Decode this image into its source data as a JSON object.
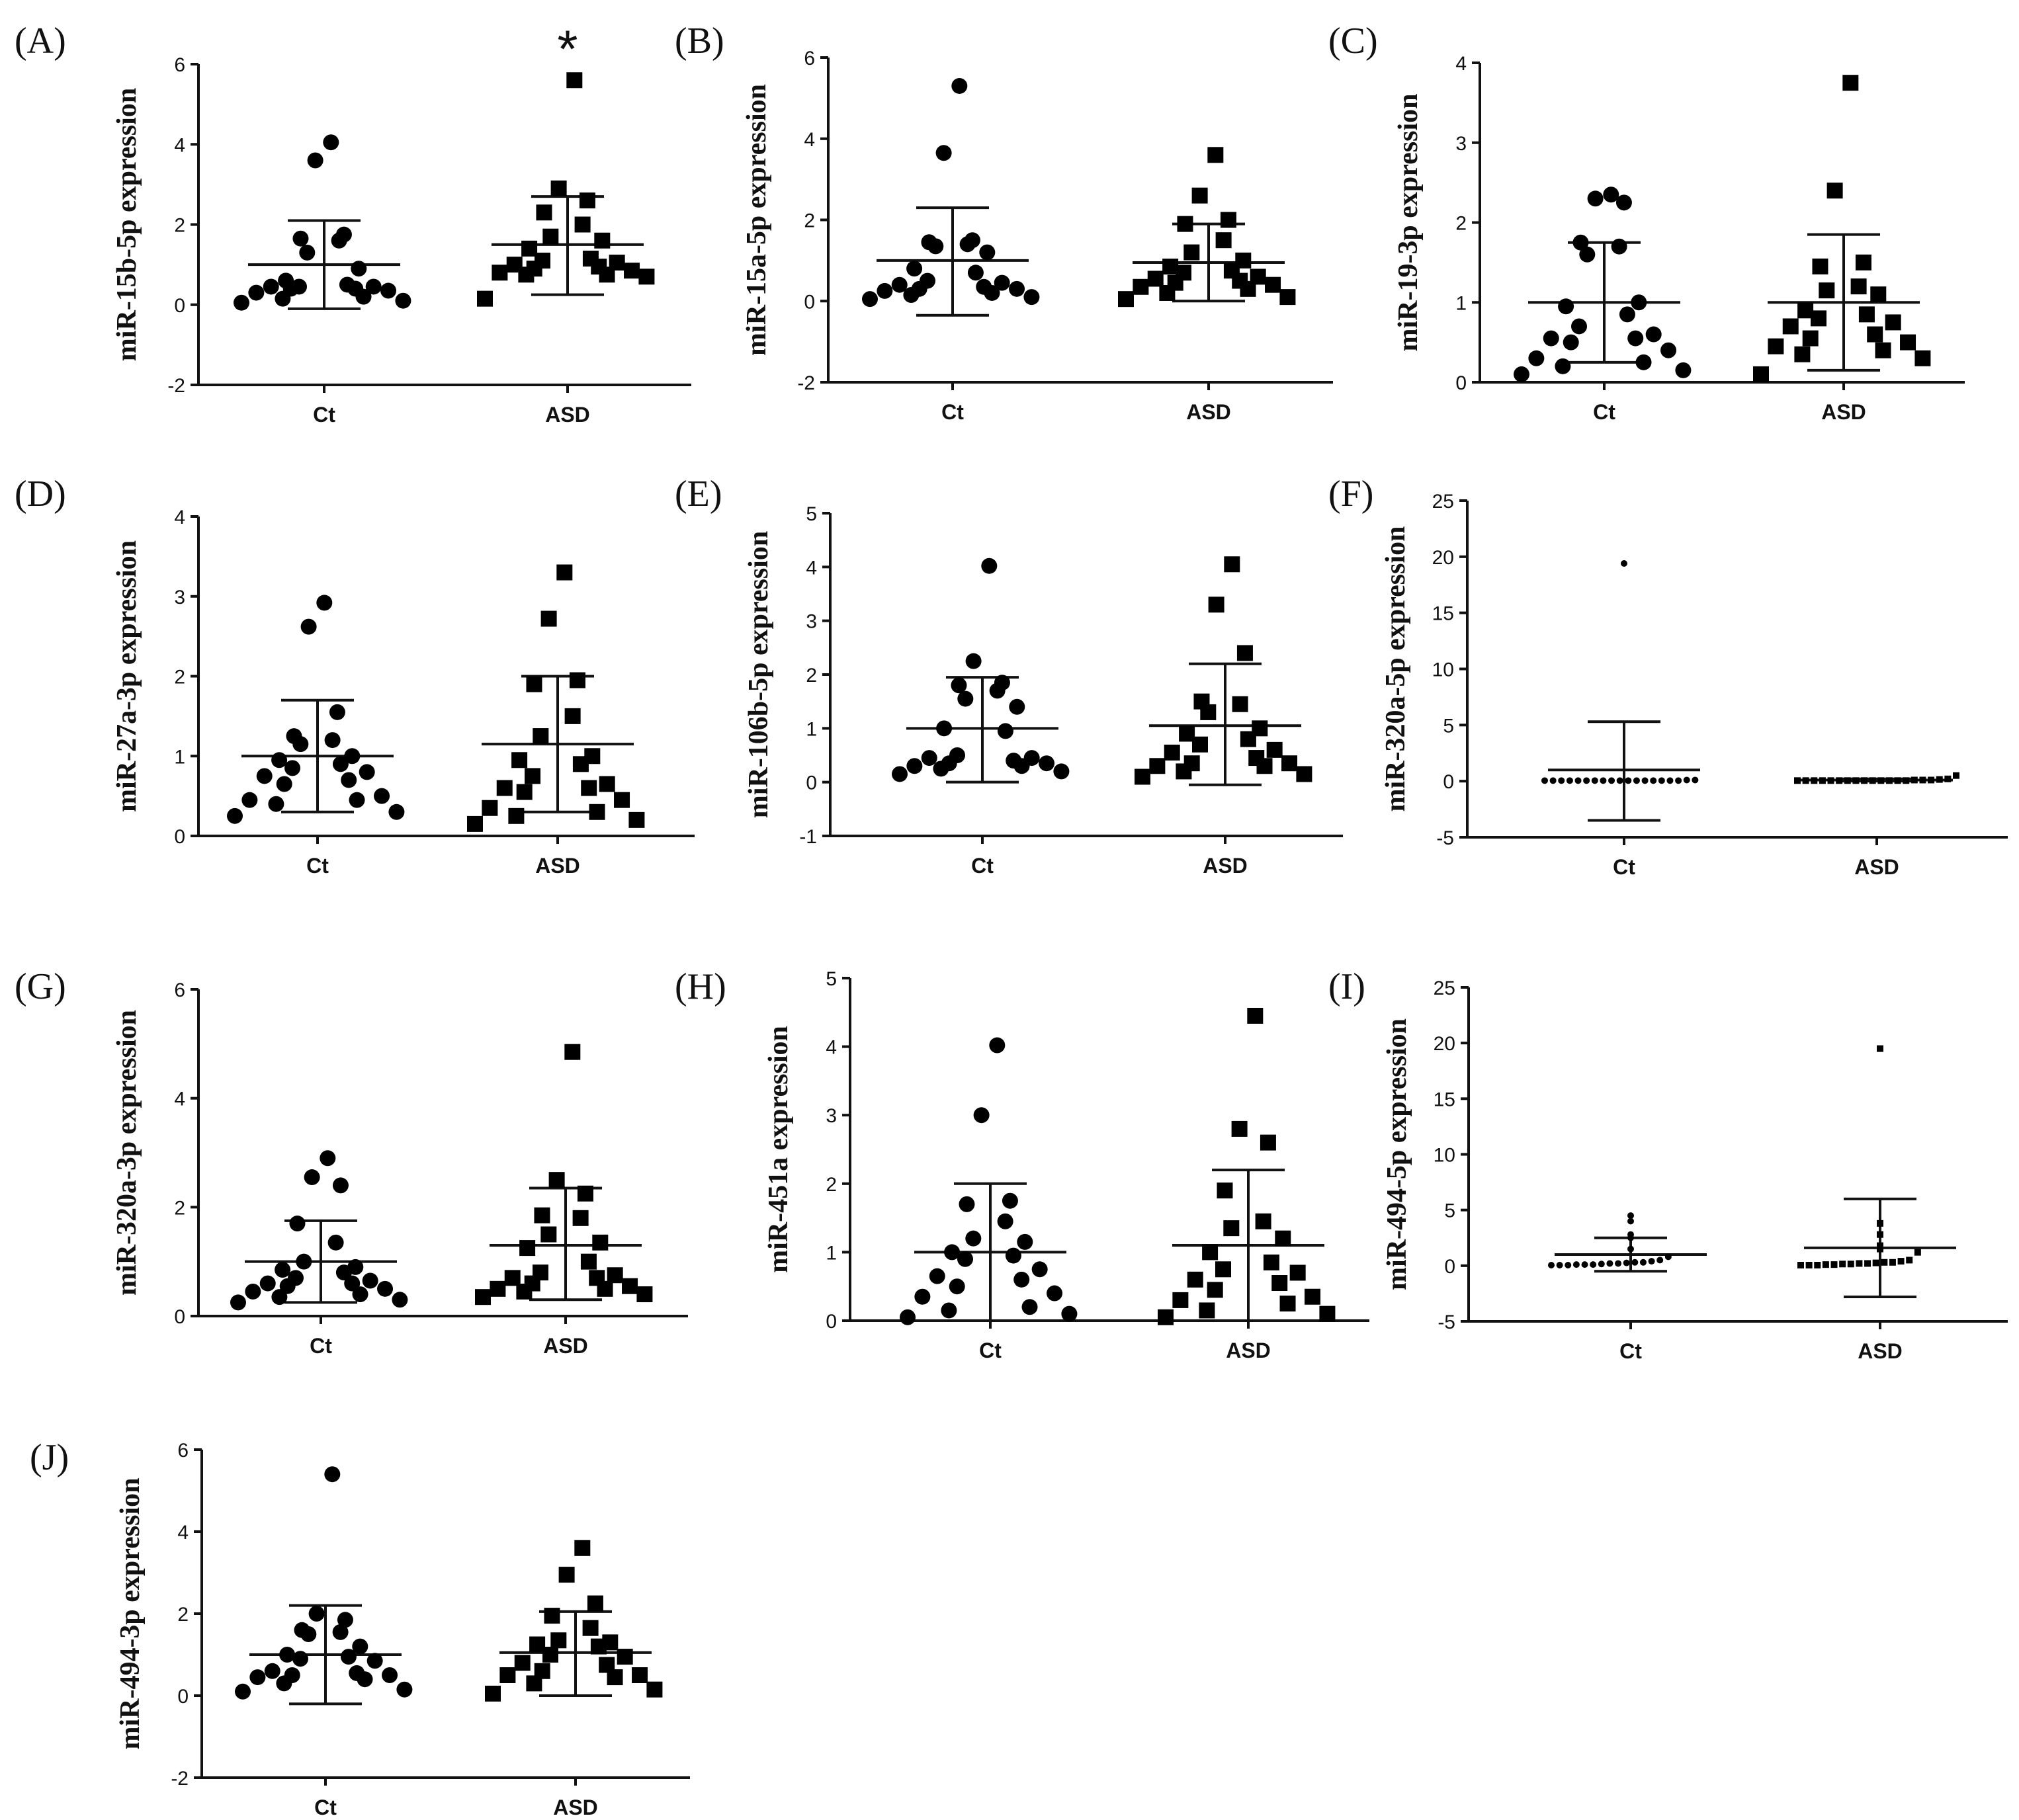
{
  "figure": {
    "categories": [
      "Ct",
      "ASD"
    ]
  },
  "chart_data": [
    {
      "type": "scatter",
      "panel": "(A)",
      "ylabel": "miR-15b-5p expression",
      "ylim": [
        -2,
        6
      ],
      "yticks": [
        -2,
        0,
        2,
        4,
        6
      ],
      "categories": [
        "Ct",
        "ASD"
      ],
      "significance": "*",
      "series": [
        {
          "name": "Ct",
          "marker": "circle",
          "mean": 1.0,
          "sd_low": -0.1,
          "sd_high": 2.1,
          "values": [
            4.05,
            3.6,
            1.75,
            1.65,
            1.6,
            1.3,
            0.9,
            0.6,
            0.5,
            0.45,
            0.4,
            0.45,
            0.35,
            0.3,
            0.2,
            0.15,
            0.1,
            0.05,
            0.4,
            0.45
          ]
        },
        {
          "name": "ASD",
          "marker": "square",
          "mean": 1.5,
          "sd_low": 0.25,
          "sd_high": 2.7,
          "values": [
            5.6,
            2.9,
            2.6,
            2.3,
            2.0,
            1.7,
            1.6,
            1.4,
            1.15,
            1.1,
            1.05,
            1.0,
            0.95,
            0.9,
            0.85,
            0.8,
            0.75,
            0.75,
            0.7,
            0.15
          ]
        }
      ]
    },
    {
      "type": "scatter",
      "panel": "(B)",
      "ylabel": "miR-15a-5p expression",
      "ylim": [
        -2,
        6
      ],
      "yticks": [
        -2,
        0,
        2,
        4,
        6
      ],
      "categories": [
        "Ct",
        "ASD"
      ],
      "series": [
        {
          "name": "Ct",
          "marker": "circle",
          "mean": 1.0,
          "sd_low": -0.35,
          "sd_high": 2.3,
          "values": [
            5.3,
            3.65,
            1.5,
            1.45,
            1.4,
            1.35,
            1.2,
            0.8,
            0.7,
            0.5,
            0.45,
            0.4,
            0.35,
            0.3,
            0.3,
            0.25,
            0.2,
            0.15,
            0.1,
            0.05
          ]
        },
        {
          "name": "ASD",
          "marker": "square",
          "mean": 0.95,
          "sd_low": 0.0,
          "sd_high": 1.9,
          "values": [
            3.6,
            2.6,
            2.0,
            1.9,
            1.5,
            1.2,
            1.0,
            0.85,
            0.75,
            0.7,
            0.6,
            0.55,
            0.5,
            0.45,
            0.4,
            0.35,
            0.3,
            0.2,
            0.1,
            0.05
          ]
        }
      ]
    },
    {
      "type": "scatter",
      "panel": "(C)",
      "ylabel": "miR-19-3p expression",
      "ylim": [
        0,
        4
      ],
      "yticks": [
        0,
        1,
        2,
        3,
        4
      ],
      "categories": [
        "Ct",
        "ASD"
      ],
      "series": [
        {
          "name": "Ct",
          "marker": "circle",
          "mean": 1.0,
          "sd_low": 0.25,
          "sd_high": 1.75,
          "values": [
            2.35,
            2.3,
            2.25,
            1.75,
            1.7,
            1.6,
            1.0,
            0.95,
            0.85,
            0.7,
            0.6,
            0.55,
            0.55,
            0.5,
            0.4,
            0.3,
            0.25,
            0.2,
            0.15,
            0.1
          ]
        },
        {
          "name": "ASD",
          "marker": "square",
          "mean": 1.0,
          "sd_low": 0.15,
          "sd_high": 1.85,
          "values": [
            3.75,
            2.4,
            1.5,
            1.45,
            1.2,
            1.15,
            1.1,
            0.9,
            0.85,
            0.8,
            0.75,
            0.7,
            0.6,
            0.55,
            0.5,
            0.45,
            0.4,
            0.35,
            0.3,
            0.1
          ]
        }
      ]
    },
    {
      "type": "scatter",
      "panel": "(D)",
      "ylabel": "miR-27a-3p expression",
      "ylim": [
        0,
        4
      ],
      "yticks": [
        0,
        1,
        2,
        3,
        4
      ],
      "categories": [
        "Ct",
        "ASD"
      ],
      "series": [
        {
          "name": "Ct",
          "marker": "circle",
          "mean": 1.0,
          "sd_low": 0.3,
          "sd_high": 1.7,
          "values": [
            2.92,
            2.62,
            1.55,
            1.25,
            1.2,
            1.15,
            1.0,
            0.95,
            0.9,
            0.85,
            0.8,
            0.75,
            0.7,
            0.65,
            0.5,
            0.45,
            0.45,
            0.4,
            0.3,
            0.25
          ]
        },
        {
          "name": "ASD",
          "marker": "square",
          "mean": 1.15,
          "sd_low": 0.3,
          "sd_high": 2.0,
          "values": [
            3.3,
            2.72,
            1.95,
            1.9,
            1.5,
            1.25,
            1.0,
            0.95,
            0.9,
            0.75,
            0.65,
            0.6,
            0.6,
            0.55,
            0.45,
            0.35,
            0.3,
            0.25,
            0.2,
            0.15
          ]
        }
      ]
    },
    {
      "type": "scatter",
      "panel": "(E)",
      "ylabel": "miR-106b-5p expression",
      "ylim": [
        -1,
        5
      ],
      "yticks": [
        -1,
        0,
        1,
        2,
        3,
        4,
        5
      ],
      "categories": [
        "Ct",
        "ASD"
      ],
      "series": [
        {
          "name": "Ct",
          "marker": "circle",
          "mean": 1.0,
          "sd_low": 0.0,
          "sd_high": 1.95,
          "values": [
            4.02,
            2.25,
            1.85,
            1.8,
            1.7,
            1.55,
            1.4,
            1.0,
            0.95,
            0.5,
            0.45,
            0.45,
            0.4,
            0.35,
            0.35,
            0.3,
            0.3,
            0.25,
            0.2,
            0.15
          ]
        },
        {
          "name": "ASD",
          "marker": "square",
          "mean": 1.05,
          "sd_low": -0.05,
          "sd_high": 2.2,
          "values": [
            4.05,
            3.3,
            2.4,
            1.5,
            1.45,
            1.3,
            1.0,
            0.9,
            0.8,
            0.7,
            0.6,
            0.55,
            0.45,
            0.35,
            0.35,
            0.3,
            0.3,
            0.2,
            0.15,
            0.1
          ]
        }
      ]
    },
    {
      "type": "scatter",
      "panel": "(F)",
      "ylabel": "miR-320a-5p expression",
      "ylim": [
        -5,
        25
      ],
      "yticks": [
        -5,
        0,
        5,
        10,
        15,
        20,
        25
      ],
      "categories": [
        "Ct",
        "ASD"
      ],
      "series": [
        {
          "name": "Ct",
          "marker": "circle",
          "mean": 1.0,
          "sd_low": -3.5,
          "sd_high": 5.3,
          "values": [
            19.4,
            0.1,
            0.1,
            0.05,
            0.05,
            0.05,
            0.05,
            0.05,
            0.05,
            0.05,
            0.05,
            0.05,
            0.05,
            0.05,
            0.05,
            0.05,
            0.05,
            0.05,
            0.05,
            0.05
          ]
        },
        {
          "name": "ASD",
          "marker": "square",
          "mean": 0.1,
          "sd_low": 0.0,
          "sd_high": 0.2,
          "values": [
            0.5,
            0.2,
            0.15,
            0.1,
            0.1,
            0.1,
            0.05,
            0.05,
            0.05,
            0.05,
            0.05,
            0.05,
            0.05,
            0.05,
            0.05,
            0.05,
            0.05,
            0.05,
            0.05,
            0.05
          ]
        }
      ]
    },
    {
      "type": "scatter",
      "panel": "(G)",
      "ylabel": "miR-320a-3p expression",
      "ylim": [
        0,
        6
      ],
      "yticks": [
        0,
        2,
        4,
        6
      ],
      "categories": [
        "Ct",
        "ASD"
      ],
      "series": [
        {
          "name": "Ct",
          "marker": "circle",
          "mean": 1.0,
          "sd_low": 0.25,
          "sd_high": 1.75,
          "values": [
            2.9,
            2.55,
            2.4,
            1.7,
            1.35,
            1.0,
            0.9,
            0.85,
            0.8,
            0.7,
            0.65,
            0.6,
            0.6,
            0.55,
            0.5,
            0.45,
            0.4,
            0.35,
            0.3,
            0.25
          ]
        },
        {
          "name": "ASD",
          "marker": "square",
          "mean": 1.3,
          "sd_low": 0.3,
          "sd_high": 2.35,
          "values": [
            4.85,
            2.5,
            2.25,
            1.85,
            1.8,
            1.5,
            1.35,
            1.25,
            1.0,
            0.8,
            0.75,
            0.7,
            0.7,
            0.6,
            0.55,
            0.5,
            0.5,
            0.45,
            0.4,
            0.35
          ]
        }
      ]
    },
    {
      "type": "scatter",
      "panel": "(H)",
      "ylabel": "miR-451a expression",
      "ylim": [
        0,
        5
      ],
      "yticks": [
        0,
        1,
        2,
        3,
        4,
        5
      ],
      "categories": [
        "Ct",
        "ASD"
      ],
      "series": [
        {
          "name": "Ct",
          "marker": "circle",
          "mean": 1.0,
          "sd_low": 0.0,
          "sd_high": 2.0,
          "values": [
            4.02,
            3.0,
            1.75,
            1.7,
            1.45,
            1.2,
            1.15,
            1.0,
            0.95,
            0.9,
            0.75,
            0.65,
            0.6,
            0.5,
            0.4,
            0.35,
            0.2,
            0.15,
            0.1,
            0.05
          ]
        },
        {
          "name": "ASD",
          "marker": "square",
          "mean": 1.1,
          "sd_low": 0.0,
          "sd_high": 2.2,
          "values": [
            4.45,
            2.8,
            2.6,
            1.9,
            1.45,
            1.35,
            1.2,
            1.0,
            0.85,
            0.75,
            0.7,
            0.6,
            0.55,
            0.45,
            0.35,
            0.3,
            0.25,
            0.15,
            0.1,
            0.05
          ]
        }
      ]
    },
    {
      "type": "scatter",
      "panel": "(I)",
      "ylabel": "miR-494-5p expression",
      "ylim": [
        -5,
        25
      ],
      "yticks": [
        -5,
        0,
        5,
        10,
        15,
        20,
        25
      ],
      "categories": [
        "Ct",
        "ASD"
      ],
      "series": [
        {
          "name": "Ct",
          "marker": "circle",
          "mean": 1.0,
          "sd_low": -0.5,
          "sd_high": 2.5,
          "values": [
            4.5,
            4.0,
            2.8,
            2.5,
            1.5,
            0.8,
            0.5,
            0.4,
            0.3,
            0.3,
            0.25,
            0.2,
            0.2,
            0.15,
            0.1,
            0.1,
            0.1,
            0.05,
            0.05,
            0.05
          ]
        },
        {
          "name": "ASD",
          "marker": "square",
          "mean": 1.6,
          "sd_low": -2.8,
          "sd_high": 6.0,
          "values": [
            19.5,
            3.8,
            2.8,
            1.8,
            1.5,
            1.2,
            0.5,
            0.4,
            0.3,
            0.3,
            0.25,
            0.2,
            0.2,
            0.15,
            0.15,
            0.1,
            0.1,
            0.05,
            0.05,
            0.05
          ]
        }
      ]
    },
    {
      "type": "scatter",
      "panel": "(J)",
      "ylabel": "miR-494-3p expression",
      "ylim": [
        -2,
        6
      ],
      "yticks": [
        -2,
        0,
        2,
        4,
        6
      ],
      "categories": [
        "Ct",
        "ASD"
      ],
      "series": [
        {
          "name": "Ct",
          "marker": "circle",
          "mean": 1.0,
          "sd_low": -0.2,
          "sd_high": 2.2,
          "values": [
            5.4,
            2.0,
            1.85,
            1.6,
            1.55,
            1.5,
            1.2,
            1.0,
            0.95,
            0.9,
            0.85,
            0.6,
            0.55,
            0.5,
            0.5,
            0.45,
            0.4,
            0.3,
            0.15,
            0.1
          ]
        },
        {
          "name": "ASD",
          "marker": "square",
          "mean": 1.05,
          "sd_low": 0.0,
          "sd_high": 2.05,
          "values": [
            3.6,
            2.95,
            2.25,
            1.95,
            1.65,
            1.35,
            1.3,
            1.25,
            1.2,
            1.0,
            0.95,
            0.8,
            0.75,
            0.6,
            0.5,
            0.5,
            0.45,
            0.3,
            0.15,
            0.05
          ]
        }
      ]
    }
  ]
}
